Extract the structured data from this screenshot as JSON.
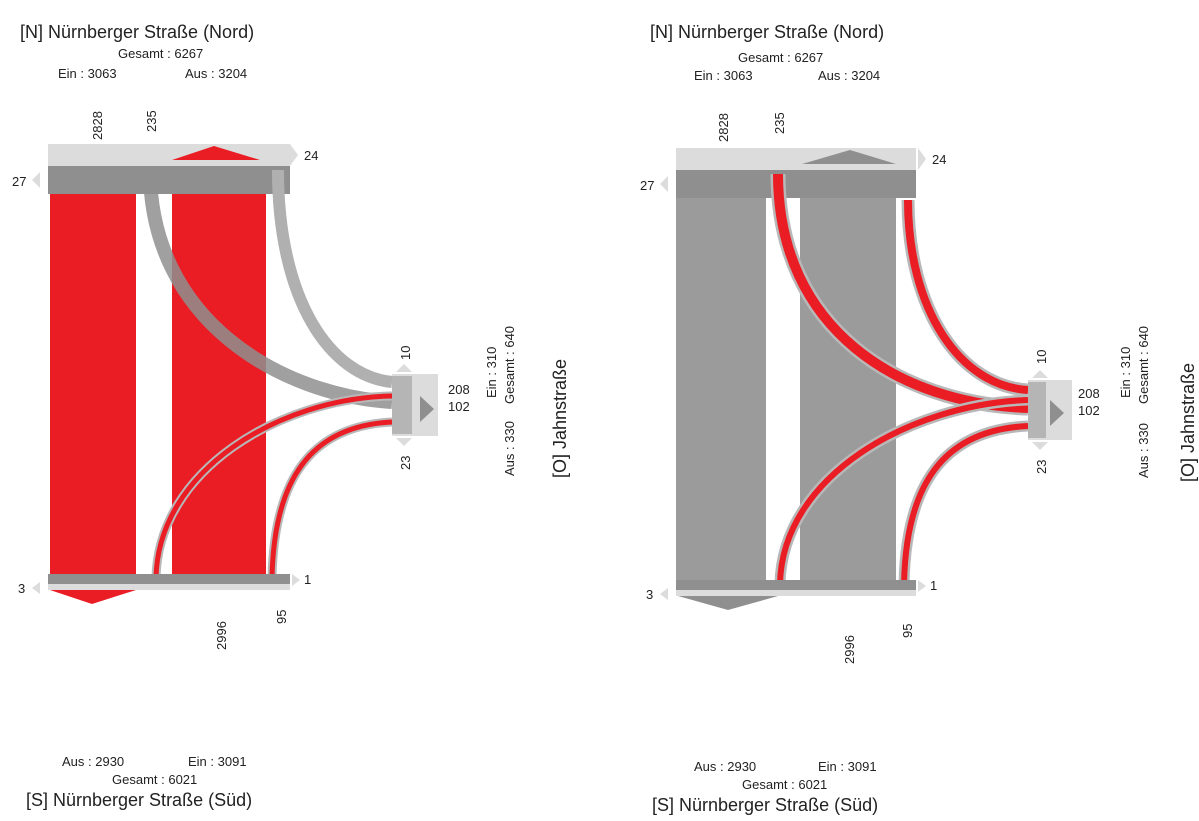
{
  "colors": {
    "highlight": "#ea1c24",
    "flow_gray": "#9b9b9b",
    "flow_light": "#b8b8b8",
    "bar_light": "#dcdcdc",
    "bar_dark": "#8f8f8f"
  },
  "diagrams": [
    {
      "highlight": "north-south",
      "north": {
        "name": "[N] Nürnberger Straße (Nord)",
        "total": "Gesamt : 6267",
        "in": "Ein : 3063",
        "out": "Aus : 3204",
        "through": "2828",
        "right_turn": "235",
        "uturn_left": "27",
        "uturn_right": "24"
      },
      "south": {
        "name": "[S] Nürnberger Straße (Süd)",
        "total": "Gesamt : 6021",
        "in": "Ein : 3091",
        "out": "Aus : 2930",
        "through": "2996",
        "right_turn": "95",
        "uturn_left": "3",
        "uturn_right": "1"
      },
      "east": {
        "name": "[O] Jahnstraße",
        "total": "Gesamt : 640",
        "in": "Ein : 310",
        "out": "Aus : 330",
        "to_north": "208",
        "to_south": "102",
        "uturn_top": "10",
        "uturn_bottom": "23"
      }
    },
    {
      "highlight": "east-links",
      "north": {
        "name": "[N] Nürnberger Straße (Nord)",
        "total": "Gesamt : 6267",
        "in": "Ein : 3063",
        "out": "Aus : 3204",
        "through": "2828",
        "right_turn": "235",
        "uturn_left": "27",
        "uturn_right": "24"
      },
      "south": {
        "name": "[S] Nürnberger Straße (Süd)",
        "total": "Gesamt : 6021",
        "in": "Ein : 3091",
        "out": "Aus : 2930",
        "through": "2996",
        "right_turn": "95",
        "uturn_left": "3",
        "uturn_right": "1"
      },
      "east": {
        "name": "[O] Jahnstraße",
        "total": "Gesamt : 640",
        "in": "Ein : 310",
        "out": "Aus : 330",
        "to_north": "208",
        "to_south": "102",
        "uturn_top": "10",
        "uturn_bottom": "23"
      }
    }
  ]
}
